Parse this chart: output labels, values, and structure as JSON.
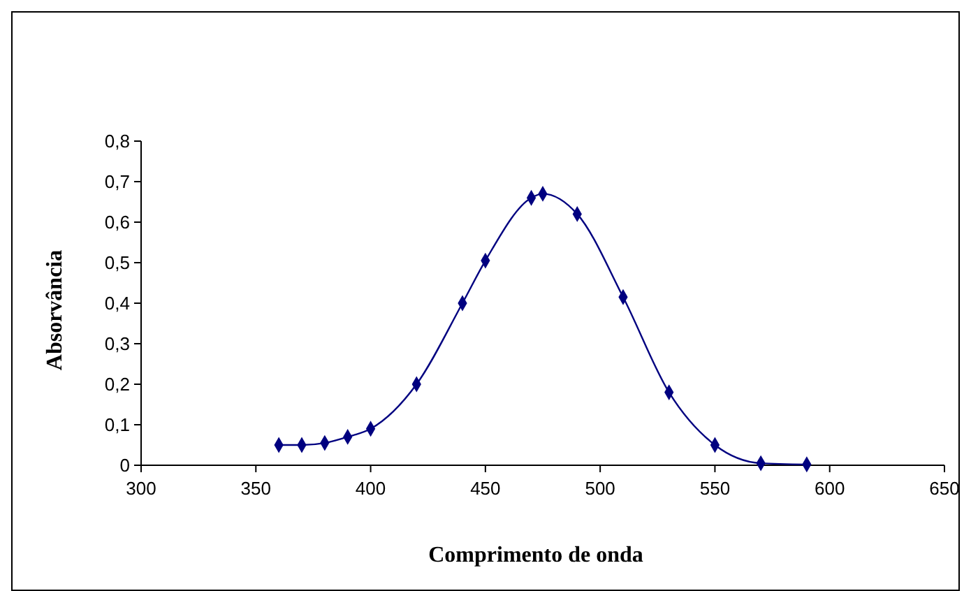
{
  "chart_data": {
    "type": "line",
    "xlabel": "Comprimento de onda",
    "ylabel": "Absorvância",
    "x": [
      360,
      370,
      380,
      390,
      400,
      420,
      440,
      450,
      470,
      475,
      490,
      510,
      530,
      550,
      570,
      590
    ],
    "series": [
      {
        "color": "#000080",
        "values": [
          0.05,
          0.05,
          0.055,
          0.07,
          0.09,
          0.2,
          0.4,
          0.505,
          0.66,
          0.67,
          0.62,
          0.415,
          0.18,
          0.05,
          0.005,
          0.002
        ]
      }
    ],
    "xlim": [
      300,
      650
    ],
    "xticks": [
      300,
      350,
      400,
      450,
      500,
      550,
      600,
      650
    ],
    "ylim": [
      0,
      0.8
    ],
    "yticks": [
      {
        "value": 0,
        "label": "0"
      },
      {
        "value": 0.1,
        "label": "0,1"
      },
      {
        "value": 0.2,
        "label": "0,2"
      },
      {
        "value": 0.3,
        "label": "0,3"
      },
      {
        "value": 0.4,
        "label": "0,4"
      },
      {
        "value": 0.5,
        "label": "0,5"
      },
      {
        "value": 0.6,
        "label": "0,6"
      },
      {
        "value": 0.7,
        "label": "0,7"
      },
      {
        "value": 0.8,
        "label": "0,8"
      }
    ],
    "marker": "diamond",
    "line_style": "solid"
  }
}
